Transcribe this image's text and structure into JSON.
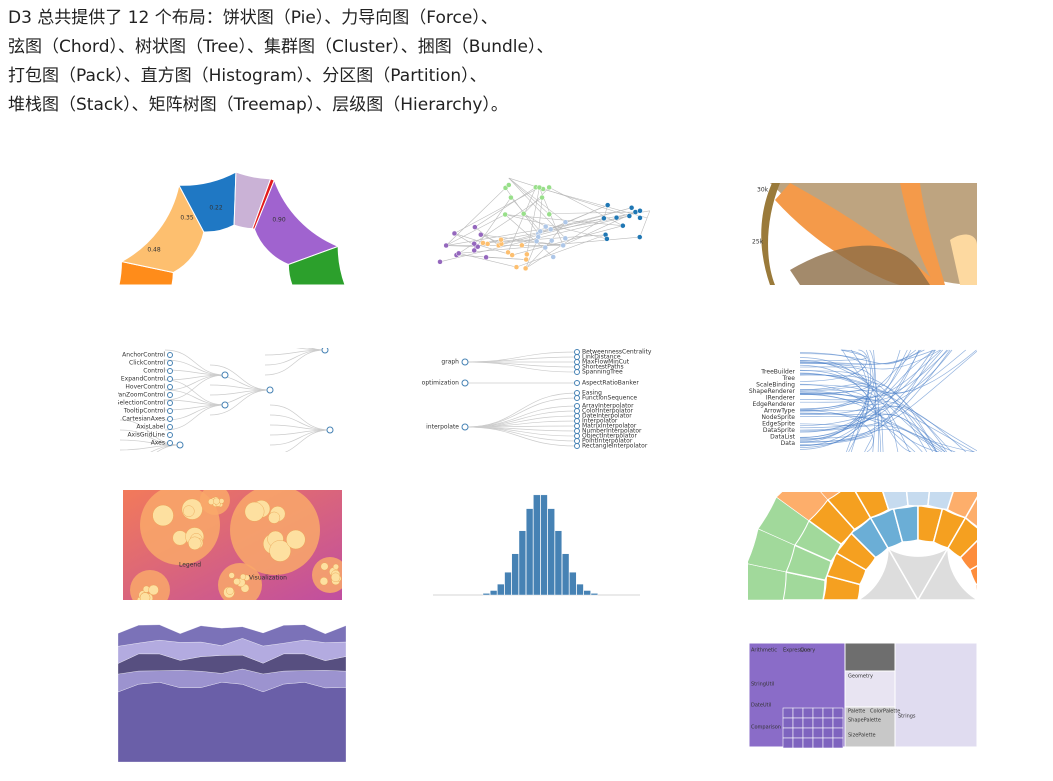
{
  "intro": {
    "lines": [
      "D3 总共提供了 12 个布局：饼状图（Pie）、力导向图（Force）、",
      "弦图（Chord）、树状图（Tree）、集群图（Cluster）、捆图（Bundle）、",
      "打包图（Pack）、直方图（Histogram）、分区图（Partition）、",
      "堆栈图（Stack）、矩阵树图（Treemap）、层级图（Hierarchy）。"
    ]
  },
  "thumbnails": [
    {
      "name": "pie",
      "labels": [
        "0.48",
        "0.35",
        "0.22",
        "0.90"
      ]
    },
    {
      "name": "force",
      "labels": []
    },
    {
      "name": "chord",
      "labels": [
        "30k",
        "25k"
      ]
    },
    {
      "name": "tree",
      "labels": [
        "AnchorControl",
        "ClickControl",
        "Control",
        "ExpandControl",
        "HoverControl",
        "PanZoomControl",
        "SelectionControl",
        "TooltipControl",
        "CartesianAxes",
        "AxisLabel",
        "AxisGridLine",
        "Axes"
      ]
    },
    {
      "name": "cluster",
      "labels": [
        "graph",
        "optimization",
        "interpolate",
        "BetweennessCentrality",
        "LinkDistance",
        "MaxFlowMinCut",
        "ShortestPaths",
        "SpanningTree",
        "AspectRatioBanker",
        "Easing",
        "FunctionSequence",
        "ArrayInterpolator",
        "ColorInterpolator",
        "DateInterpolator",
        "Interpolator",
        "MatrixInterpolator",
        "NumberInterpolator",
        "ObjectInterpolator",
        "PointInterpolator",
        "RectangleInterpolator"
      ]
    },
    {
      "name": "bundle",
      "labels": [
        "TreeBuilder",
        "Tree",
        "ScaleBinding",
        "ShapeRenderer",
        "IRenderer",
        "EdgeRenderer",
        "ArrowType",
        "NodeSprite",
        "EdgeSprite",
        "DataSprite",
        "DataList",
        "Data"
      ]
    },
    {
      "name": "pack",
      "labels": [
        "Legend",
        "Visualization"
      ]
    },
    {
      "name": "histogram",
      "labels": []
    },
    {
      "name": "partition",
      "labels": []
    },
    {
      "name": "stack",
      "labels": []
    },
    {
      "name": "treemap",
      "labels": [
        "Arithmetic",
        "Expression",
        "Query",
        "StringUtil",
        "DateUtil",
        "Comparison",
        "Geometry",
        "Palette",
        "ColorPalette",
        "ShapePalette",
        "SizePalette",
        "Strings"
      ]
    }
  ]
}
